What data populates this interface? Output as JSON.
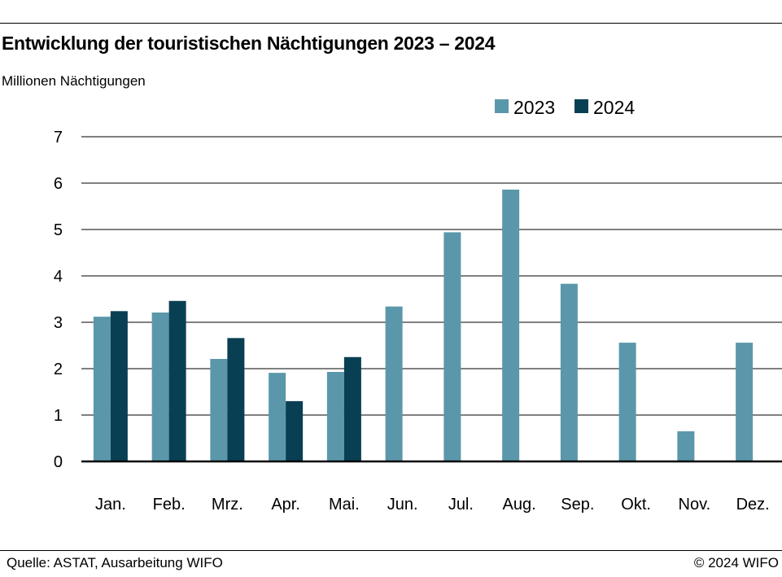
{
  "header": {
    "title": "Entwicklung der touristischen Nächtigungen 2023 – 2024",
    "subtitle": "Millionen Nächtigungen"
  },
  "footer": {
    "source": "Quelle: ASTAT, Ausarbeitung WIFO",
    "copyright": "© 2024 WIFO"
  },
  "colors": {
    "series_2023": "#5b97aa",
    "series_2024": "#093f52",
    "grid": "#000000"
  },
  "chart_data": {
    "type": "bar",
    "title": "Entwicklung der touristischen Nächtigungen 2023 – 2024",
    "ylabel": "Millionen Nächtigungen",
    "xlabel": "",
    "categories": [
      "Jan.",
      "Feb.",
      "Mrz.",
      "Apr.",
      "Mai.",
      "Jun.",
      "Jul.",
      "Aug.",
      "Sep.",
      "Okt.",
      "Nov.",
      "Dez."
    ],
    "series": [
      {
        "name": "2023",
        "values": [
          3.12,
          3.21,
          2.21,
          1.91,
          1.93,
          3.34,
          4.94,
          5.86,
          3.83,
          2.56,
          0.65,
          2.56
        ]
      },
      {
        "name": "2024",
        "values": [
          3.24,
          3.46,
          2.66,
          1.3,
          2.25,
          null,
          null,
          null,
          null,
          null,
          null,
          null
        ]
      }
    ],
    "ylim": [
      0,
      7
    ],
    "yticks": [
      0,
      1,
      2,
      3,
      4,
      5,
      6,
      7
    ],
    "grid": true,
    "legend": "top-right"
  }
}
